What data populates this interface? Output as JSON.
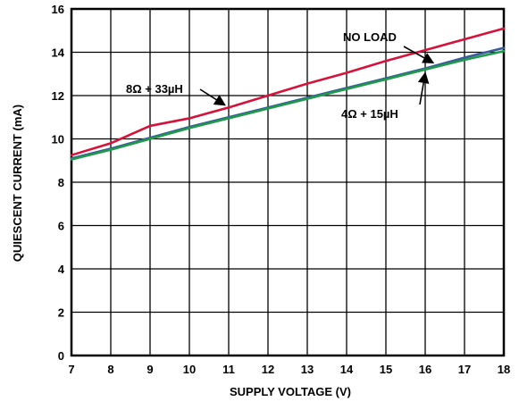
{
  "chart_data": {
    "type": "line",
    "xlabel": "SUPPLY VOLTAGE (V)",
    "ylabel": "QUIESCENT CURRENT (mA)",
    "xlim": [
      7,
      18
    ],
    "ylim": [
      0,
      16
    ],
    "xticks": [
      7,
      8,
      9,
      10,
      11,
      12,
      13,
      14,
      15,
      16,
      17,
      18
    ],
    "yticks": [
      0,
      2,
      4,
      6,
      8,
      10,
      12,
      14,
      16
    ],
    "grid": true,
    "series": [
      {
        "name": "NO LOAD",
        "color": "#3a5a9a",
        "x": [
          7,
          8,
          9,
          10,
          11,
          12,
          13,
          14,
          15,
          16,
          17,
          18
        ],
        "y": [
          9.1,
          9.55,
          10.05,
          10.55,
          11.0,
          11.45,
          11.9,
          12.35,
          12.8,
          13.25,
          13.75,
          14.2
        ]
      },
      {
        "name": "4Ω + 15µH",
        "color": "#1e9a4a",
        "x": [
          7,
          8,
          9,
          10,
          11,
          12,
          13,
          14,
          15,
          16,
          17,
          18
        ],
        "y": [
          9.05,
          9.5,
          10.0,
          10.5,
          10.95,
          11.4,
          11.85,
          12.3,
          12.75,
          13.2,
          13.65,
          14.05
        ]
      },
      {
        "name": "8Ω + 33µH",
        "color": "#d2143c",
        "x": [
          7,
          8,
          9,
          10,
          11,
          12,
          13,
          14,
          15,
          16,
          17,
          18
        ],
        "y": [
          9.25,
          9.8,
          10.6,
          10.95,
          11.45,
          12.0,
          12.55,
          13.05,
          13.6,
          14.1,
          14.6,
          15.1
        ]
      }
    ],
    "annotations": [
      {
        "text": "NO LOAD",
        "series": 0,
        "at_x": 16.2
      },
      {
        "text": "8Ω + 33µH",
        "series": 2,
        "at_x": 10.9
      },
      {
        "text": "4Ω + 15µH",
        "series": 1,
        "at_x": 16.0
      }
    ]
  }
}
